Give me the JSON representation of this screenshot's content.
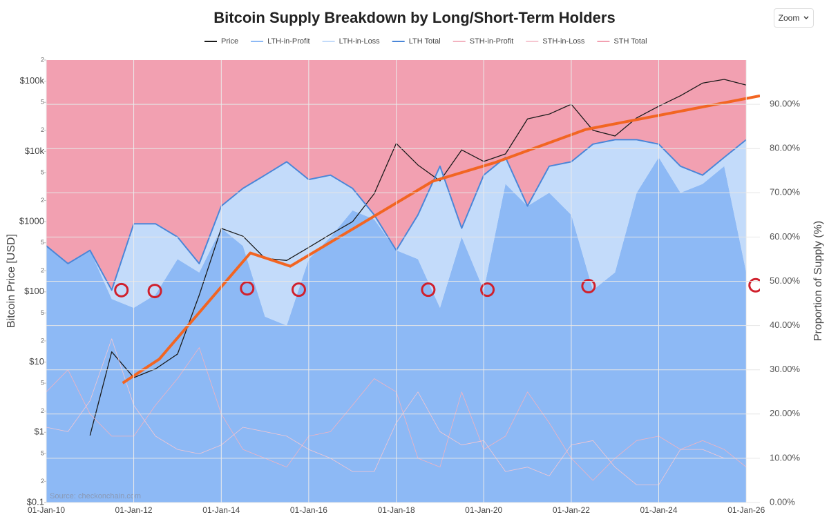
{
  "ui": {
    "zoom": "Zoom"
  },
  "chart_data": {
    "type": "area",
    "title": "Bitcoin Supply Breakdown by Long/Short-Term Holders",
    "ylabel": "Bitcoin Price [USD]",
    "y2label": "Proportion of Supply (%)",
    "source": "Source: checkonchain.com",
    "x": [
      "2010-01-01",
      "2010-07-01",
      "2011-01-01",
      "2011-07-01",
      "2012-01-01",
      "2012-07-01",
      "2013-01-01",
      "2013-07-01",
      "2014-01-01",
      "2014-07-01",
      "2015-01-01",
      "2015-07-01",
      "2016-01-01",
      "2016-07-01",
      "2017-01-01",
      "2017-07-01",
      "2018-01-01",
      "2018-07-01",
      "2019-01-01",
      "2019-07-01",
      "2020-01-01",
      "2020-07-01",
      "2021-01-01",
      "2021-07-01",
      "2022-01-01",
      "2022-07-01",
      "2023-01-01",
      "2023-07-01",
      "2024-01-01",
      "2024-07-01",
      "2025-01-01",
      "2025-07-01",
      "2026-01-01"
    ],
    "xlim": [
      "2010-01-01",
      "2026-04-25"
    ],
    "xticks": [
      {
        "value": "2010-01-01",
        "label": "01-Jan-10"
      },
      {
        "value": "2012-01-01",
        "label": "01-Jan-12"
      },
      {
        "value": "2014-01-01",
        "label": "01-Jan-14"
      },
      {
        "value": "2016-01-01",
        "label": "01-Jan-16"
      },
      {
        "value": "2018-01-01",
        "label": "01-Jan-18"
      },
      {
        "value": "2020-01-01",
        "label": "01-Jan-20"
      },
      {
        "value": "2022-01-01",
        "label": "01-Jan-22"
      },
      {
        "value": "2024-01-01",
        "label": "01-Jan-24"
      },
      {
        "value": "2026-01-01",
        "label": "01-Jan-26"
      }
    ],
    "ylog": true,
    "ylim": [
      0.1,
      200000
    ],
    "yticks": [
      {
        "value": 0.1,
        "label": "$0.1"
      },
      {
        "value": 0.2,
        "label": "2"
      },
      {
        "value": 0.5,
        "label": "5"
      },
      {
        "value": 1,
        "label": "$1"
      },
      2,
      5,
      {
        "value": 10,
        "label": "$10"
      },
      {
        "value": 20,
        "label": "2"
      },
      {
        "value": 50,
        "label": "5"
      },
      {
        "value": 100,
        "label": "$100"
      },
      {
        "value": 200,
        "label": "2"
      },
      {
        "value": 500,
        "label": "5"
      },
      {
        "value": 1000,
        "label": "$1000"
      },
      {
        "value": 2000,
        "label": "2"
      },
      {
        "value": 5000,
        "label": "5"
      },
      {
        "value": 10000,
        "label": "$10k"
      },
      {
        "value": 20000,
        "label": "2"
      },
      {
        "value": 50000,
        "label": "5"
      },
      {
        "value": 100000,
        "label": "$100k"
      },
      {
        "value": 200000,
        "label": "2"
      }
    ],
    "y2lim": [
      0,
      100
    ],
    "y2ticks": [
      {
        "value": 0,
        "label": "0.00%"
      },
      {
        "value": 10,
        "label": "10.00%"
      },
      {
        "value": 20,
        "label": "20.00%"
      },
      {
        "value": 30,
        "label": "30.00%"
      },
      {
        "value": 40,
        "label": "40.00%"
      },
      {
        "value": 50,
        "label": "50.00%"
      },
      {
        "value": 60,
        "label": "60.00%"
      },
      {
        "value": 70,
        "label": "70.00%"
      },
      {
        "value": 80,
        "label": "80.00%"
      },
      {
        "value": 90,
        "label": "90.00%"
      }
    ],
    "grid": true,
    "legend": "top",
    "series": [
      {
        "name": "Price",
        "color": "#1a1a1a",
        "kind": "line",
        "axis": "y",
        "values": [
          null,
          null,
          0.9,
          14,
          6,
          8,
          13,
          90,
          800,
          620,
          300,
          280,
          430,
          660,
          1000,
          2500,
          13000,
          6400,
          3800,
          10500,
          7200,
          9200,
          29000,
          34000,
          47000,
          20000,
          16600,
          30000,
          44000,
          62000,
          94000,
          106000,
          88000
        ]
      },
      {
        "name": "LTH-in-Profit",
        "color": "#8db9f5",
        "kind": "area",
        "axis": "y2",
        "values": [
          58,
          54,
          57,
          46,
          44,
          47,
          55,
          52,
          62,
          58,
          42,
          40,
          55,
          60,
          66,
          64,
          57,
          55,
          44,
          60,
          48,
          72,
          67,
          70,
          65,
          48,
          52,
          70,
          78,
          70,
          72,
          76,
          52
        ]
      },
      {
        "name": "LTH-in-Loss",
        "color": "#c3dbfa",
        "kind": "area",
        "axis": "y2",
        "values": [
          0,
          0,
          0,
          2,
          19,
          16,
          5,
          2,
          5,
          13,
          32,
          37,
          18,
          14,
          5,
          1,
          0,
          10,
          32,
          2,
          26,
          6,
          0,
          6,
          12,
          33,
          30,
          12,
          3,
          6,
          2,
          2,
          30
        ]
      },
      {
        "name": "LTH Total",
        "color": "#4a86d8",
        "kind": "line",
        "axis": "y2",
        "values": [
          58,
          54,
          57,
          48,
          63,
          63,
          60,
          54,
          67,
          71,
          74,
          77,
          73,
          74,
          71,
          65,
          57,
          65,
          76,
          62,
          74,
          78,
          67,
          76,
          77,
          81,
          82,
          82,
          81,
          76,
          74,
          78,
          82
        ]
      },
      {
        "name": "STH-in-Profit",
        "color": "#f3b3c0",
        "kind": "line",
        "axis": "y2",
        "values": [
          25,
          30,
          20,
          15,
          15,
          22,
          28,
          35,
          20,
          12,
          10,
          8,
          15,
          16,
          22,
          28,
          25,
          10,
          8,
          25,
          12,
          15,
          25,
          18,
          10,
          5,
          10,
          14,
          15,
          12,
          14,
          12,
          8
        ]
      },
      {
        "name": "STH-in-Loss",
        "color": "#f6c7d1",
        "kind": "line",
        "axis": "y2",
        "values": [
          17,
          16,
          23,
          37,
          22,
          15,
          12,
          11,
          13,
          17,
          16,
          15,
          12,
          10,
          7,
          7,
          18,
          25,
          16,
          13,
          14,
          7,
          8,
          6,
          13,
          14,
          8,
          4,
          4,
          12,
          12,
          10,
          10
        ]
      },
      {
        "name": "STH Total",
        "color": "#f2a0b1",
        "kind": "area",
        "axis": "y2",
        "values": [
          42,
          46,
          43,
          52,
          37,
          37,
          40,
          46,
          33,
          29,
          26,
          23,
          27,
          26,
          29,
          35,
          43,
          35,
          24,
          38,
          26,
          22,
          33,
          24,
          23,
          19,
          18,
          18,
          19,
          24,
          26,
          22,
          18
        ]
      }
    ],
    "trend": {
      "color": "#f26522",
      "axis": "y2",
      "x": [
        "2011-10-01",
        "2012-08-01",
        "2014-09-01",
        "2015-08-01",
        "2018-11-01",
        "2020-04-01",
        "2022-05-01",
        "2026-04-25"
      ],
      "values": [
        27,
        32.4,
        56.4,
        53.4,
        72.6,
        76.8,
        84.3,
        91.9
      ]
    },
    "markers": {
      "color": "#d0202c",
      "axis": "y2",
      "x": [
        "2011-09-20",
        "2012-06-25",
        "2014-08-05",
        "2015-10-10",
        "2018-09-25",
        "2020-02-01",
        "2022-05-25",
        "2026-03-20"
      ],
      "values": [
        48,
        47.8,
        48.4,
        48.1,
        48.1,
        48.1,
        48.9,
        49.1
      ]
    }
  }
}
